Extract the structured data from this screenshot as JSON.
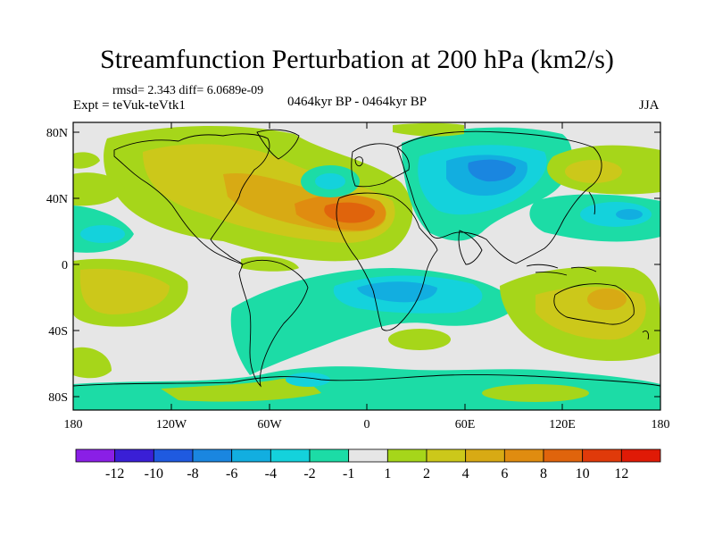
{
  "title": "Streamfunction Perturbation at 200 hPa (km2/s)",
  "stats_line": "rmsd= 2.343 diff= 6.0689e-09",
  "experiment": "Expt = teVuk-teVtk1",
  "period": "0464kyr BP - 0464kyr BP",
  "season": "JJA",
  "axes": {
    "x_ticks": [
      "180",
      "120W",
      "60W",
      "0",
      "60E",
      "120E",
      "180"
    ],
    "y_ticks": [
      "80N",
      "40N",
      "0",
      "40S",
      "80S"
    ]
  },
  "colorbar": {
    "labels": [
      "-12",
      "-10",
      "-8",
      "-6",
      "-4",
      "-2",
      "-1",
      "1",
      "2",
      "4",
      "6",
      "8",
      "10",
      "12"
    ],
    "colors": [
      "#8a1fe6",
      "#3a1fd6",
      "#1f5ae0",
      "#1a86e0",
      "#12aee0",
      "#14d2dc",
      "#1cdca6",
      "#e6e6e6",
      "#a6d61a",
      "#ccc81a",
      "#d8aa14",
      "#e08c10",
      "#e0640c",
      "#e03a0a",
      "#e01a06"
    ]
  },
  "map": {
    "background_color": "#e6e6e6",
    "colors": {
      "n2": "#1cdca6",
      "n4": "#14d2dc",
      "n6": "#12aee0",
      "n8": "#1a86e0",
      "p2": "#a6d61a",
      "p4": "#ccc81a",
      "p6": "#d8aa14",
      "p8": "#e08c10",
      "p10": "#e0640c"
    }
  }
}
